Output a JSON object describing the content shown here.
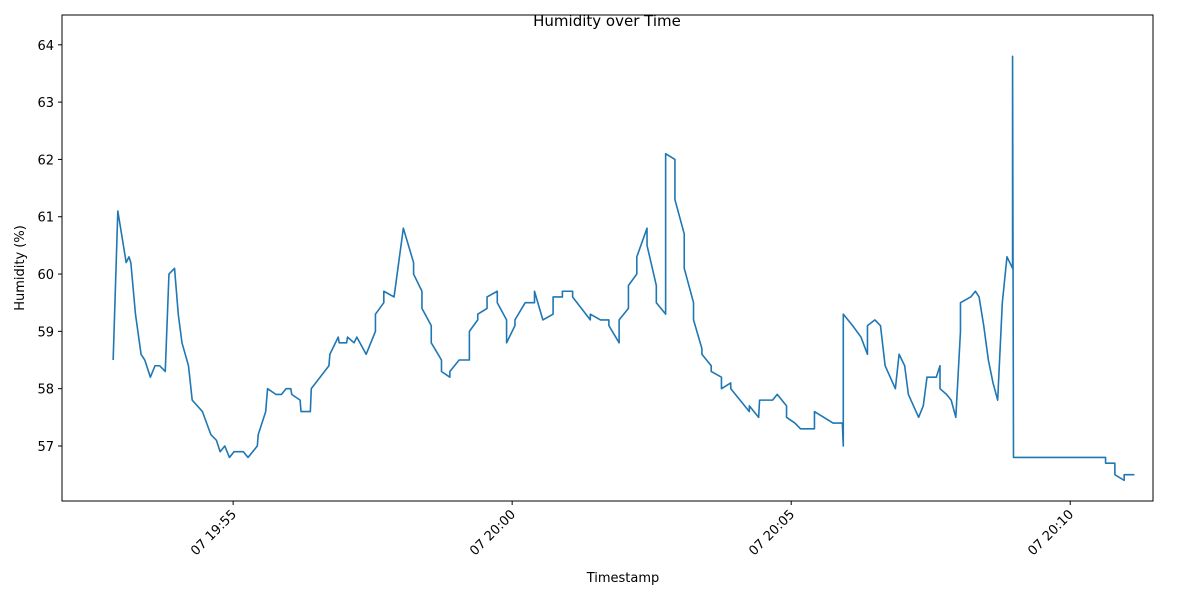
{
  "chart_data": {
    "type": "line",
    "title": "Humidity over Time",
    "x_label": "Timestamp",
    "y_label": "Humidity (%)",
    "color": "#1f77b4",
    "x": [
      "07 19:52:51",
      "07 19:52:56",
      "07 19:53:01",
      "07 19:53:05",
      "07 19:53:08",
      "07 19:53:10",
      "07 19:53:15",
      "07 19:53:21",
      "07 19:53:25",
      "07 19:53:31",
      "07 19:53:36",
      "07 19:53:41",
      "07 19:53:47",
      "07 19:53:51",
      "07 19:53:57",
      "07 19:54:01",
      "07 19:54:05",
      "07 19:54:12",
      "07 19:54:16",
      "07 19:54:27",
      "07 19:54:36",
      "07 19:54:42",
      "07 19:54:46",
      "07 19:54:51",
      "07 19:54:56",
      "07 19:55:01",
      "07 19:55:11",
      "07 19:55:16",
      "07 19:55:26",
      "07 19:55:27",
      "07 19:55:35",
      "07 19:55:37",
      "07 19:55:46",
      "07 19:55:52",
      "07 19:55:57",
      "07 19:56:02",
      "07 19:56:03",
      "07 19:56:12",
      "07 19:56:13",
      "07 19:56:23",
      "07 19:56:24",
      "07 19:56:43",
      "07 19:56:44",
      "07 19:56:53",
      "07 19:56:54",
      "07 19:57:02",
      "07 19:57:03",
      "07 19:57:10",
      "07 19:57:13",
      "07 19:57:23",
      "07 19:57:33",
      "07 19:57:33",
      "07 19:57:42",
      "07 19:57:42",
      "07 19:57:53",
      "07 19:58:03",
      "07 19:58:14",
      "07 19:58:14",
      "07 19:58:23",
      "07 19:58:23",
      "07 19:58:33",
      "07 19:58:33",
      "07 19:58:44",
      "07 19:58:44",
      "07 19:58:53",
      "07 19:58:53",
      "07 19:59:03",
      "07 19:59:14",
      "07 19:59:14",
      "07 19:59:23",
      "07 19:59:23",
      "07 19:59:33",
      "07 19:59:33",
      "07 19:59:44",
      "07 19:59:44",
      "07 19:59:54",
      "07 19:59:54",
      "07 20:00:03",
      "07 20:00:03",
      "07 20:00:14",
      "07 20:00:24",
      "07 20:00:24",
      "07 20:00:33",
      "07 20:00:44",
      "07 20:00:44",
      "07 20:00:54",
      "07 20:00:54",
      "07 20:01:05",
      "07 20:01:05",
      "07 20:01:24",
      "07 20:01:24",
      "07 20:01:35",
      "07 20:01:44",
      "07 20:01:44",
      "07 20:01:55",
      "07 20:01:55",
      "07 20:02:05",
      "07 20:02:05",
      "07 20:02:14",
      "07 20:02:14",
      "07 20:02:25",
      "07 20:02:25",
      "07 20:02:35",
      "07 20:02:35",
      "07 20:02:45",
      "07 20:02:45",
      "07 20:02:55",
      "07 20:02:55",
      "07 20:03:05",
      "07 20:03:05",
      "07 20:03:15",
      "07 20:03:15",
      "07 20:03:24",
      "07 20:03:24",
      "07 20:03:34",
      "07 20:03:34",
      "07 20:03:45",
      "07 20:03:45",
      "07 20:03:55",
      "07 20:03:55",
      "07 20:04:15",
      "07 20:04:15",
      "07 20:04:25",
      "07 20:04:26",
      "07 20:04:35",
      "07 20:04:40",
      "07 20:04:45",
      "07 20:04:55",
      "07 20:04:55",
      "07 20:05:04",
      "07 20:05:10",
      "07 20:05:25",
      "07 20:05:25",
      "07 20:05:45",
      "07 20:05:55",
      "07 20:05:56",
      "07 20:05:56",
      "07 20:06:06",
      "07 20:06:15",
      "07 20:06:22",
      "07 20:06:22",
      "07 20:06:30",
      "07 20:06:36",
      "07 20:06:41",
      "07 20:06:52",
      "07 20:06:56",
      "07 20:07:02",
      "07 20:07:06",
      "07 20:07:17",
      "07 20:07:22",
      "07 20:07:26",
      "07 20:07:36",
      "07 20:07:40",
      "07 20:07:40",
      "07 20:07:47",
      "07 20:07:52",
      "07 20:07:57",
      "07 20:08:02",
      "07 20:08:02",
      "07 20:08:13",
      "07 20:08:18",
      "07 20:08:22",
      "07 20:08:27",
      "07 20:08:32",
      "07 20:08:37",
      "07 20:08:42",
      "07 20:08:47",
      "07 20:08:52",
      "07 20:08:58",
      "07 20:08:58",
      "07 20:08:59",
      "07 20:10:38",
      "07 20:10:38",
      "07 20:10:48",
      "07 20:10:48",
      "07 20:10:58",
      "07 20:10:58",
      "07 20:11:09"
    ],
    "values": [
      58.5,
      61.1,
      60.6,
      60.2,
      60.3,
      60.2,
      59.3,
      58.6,
      58.5,
      58.2,
      58.4,
      58.4,
      58.3,
      60.0,
      60.1,
      59.3,
      58.8,
      58.4,
      57.8,
      57.6,
      57.2,
      57.1,
      56.9,
      57.0,
      56.8,
      56.9,
      56.9,
      56.8,
      57.0,
      57.2,
      57.6,
      58.0,
      57.9,
      57.9,
      58.0,
      58.0,
      57.9,
      57.8,
      57.6,
      57.6,
      58.0,
      58.4,
      58.6,
      58.9,
      58.8,
      58.8,
      58.9,
      58.8,
      58.9,
      58.6,
      59.0,
      59.3,
      59.5,
      59.7,
      59.6,
      60.8,
      60.2,
      60.0,
      59.7,
      59.4,
      59.1,
      58.8,
      58.5,
      58.3,
      58.2,
      58.3,
      58.5,
      58.5,
      59.0,
      59.2,
      59.3,
      59.4,
      59.6,
      59.7,
      59.5,
      59.2,
      58.8,
      59.1,
      59.2,
      59.5,
      59.5,
      59.7,
      59.2,
      59.3,
      59.6,
      59.6,
      59.7,
      59.7,
      59.6,
      59.2,
      59.3,
      59.2,
      59.2,
      59.1,
      58.8,
      59.2,
      59.4,
      59.8,
      60.0,
      60.3,
      60.8,
      60.5,
      59.8,
      59.5,
      59.3,
      62.1,
      62.0,
      61.3,
      60.7,
      60.1,
      59.5,
      59.2,
      58.7,
      58.6,
      58.4,
      58.3,
      58.2,
      58.0,
      58.1,
      58.0,
      57.6,
      57.7,
      57.5,
      57.8,
      57.8,
      57.8,
      57.9,
      57.7,
      57.5,
      57.4,
      57.3,
      57.3,
      57.6,
      57.4,
      57.4,
      57.0,
      59.3,
      59.1,
      58.9,
      58.6,
      59.1,
      59.2,
      59.1,
      58.4,
      58.0,
      58.6,
      58.4,
      57.9,
      57.5,
      57.7,
      58.2,
      58.2,
      58.4,
      58.0,
      57.9,
      57.8,
      57.5,
      59.0,
      59.5,
      59.6,
      59.7,
      59.6,
      59.1,
      58.5,
      58.1,
      57.8,
      59.5,
      60.3,
      60.1,
      63.8,
      56.8,
      56.8,
      56.7,
      56.7,
      56.5,
      56.4,
      56.5,
      56.5
    ],
    "xlim": [
      "07 19:51:56",
      "07 20:11:29"
    ],
    "xticks": [
      "07 19:55",
      "07 20:00",
      "07 20:05",
      "07 20:10"
    ],
    "ylim": [
      56.04,
      64.52
    ],
    "yticks": [
      57,
      58,
      59,
      60,
      61,
      62,
      63,
      64
    ],
    "grid": false
  }
}
